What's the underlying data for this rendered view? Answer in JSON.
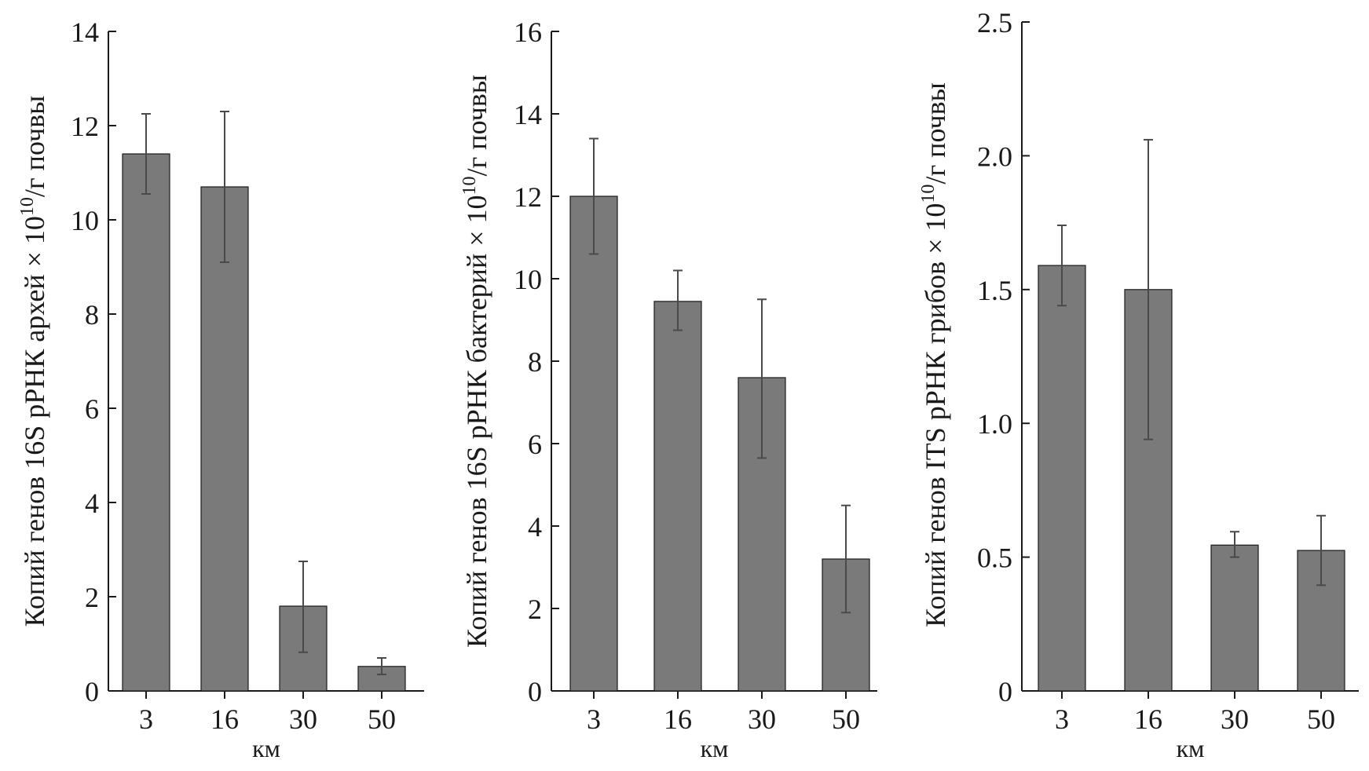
{
  "chart_data": [
    {
      "type": "bar",
      "categories": [
        "3",
        "16",
        "30",
        "50"
      ],
      "values": [
        11.4,
        10.7,
        1.8,
        0.52
      ],
      "error_low": [
        10.55,
        9.1,
        0.82,
        0.35
      ],
      "error_high": [
        12.25,
        12.3,
        2.75,
        0.7
      ],
      "yticks": [
        "0",
        "2",
        "4",
        "6",
        "8",
        "10",
        "12",
        "14"
      ],
      "ylim": [
        0,
        14
      ],
      "xlabel": "км",
      "ylabel": "Копий генов 16S рРНК архей × 10",
      "ylabel_exp": "10",
      "ylabel_tail": "/г почвы",
      "color": "#7a7a7a",
      "grid": false
    },
    {
      "type": "bar",
      "categories": [
        "3",
        "16",
        "30",
        "50"
      ],
      "values": [
        12.0,
        9.45,
        7.6,
        3.2
      ],
      "error_low": [
        10.6,
        8.75,
        5.65,
        1.9
      ],
      "error_high": [
        13.4,
        10.2,
        9.5,
        4.5
      ],
      "yticks": [
        "0",
        "2",
        "4",
        "6",
        "8",
        "10",
        "12",
        "14",
        "16"
      ],
      "ylim": [
        0,
        16
      ],
      "xlabel": "км",
      "ylabel": "Копий генов 16S рРНК бактерий × 10",
      "ylabel_exp": "10",
      "ylabel_tail": "/г почвы",
      "color": "#7a7a7a",
      "grid": false
    },
    {
      "type": "bar",
      "categories": [
        "3",
        "16",
        "30",
        "50"
      ],
      "values": [
        1.59,
        1.5,
        0.545,
        0.525
      ],
      "error_low": [
        1.44,
        0.94,
        0.5,
        0.395
      ],
      "error_high": [
        1.74,
        2.06,
        0.595,
        0.655
      ],
      "yticks": [
        "0",
        "0.5",
        "1.0",
        "1.5",
        "2.0",
        "2.5"
      ],
      "ylim": [
        0,
        2.5
      ],
      "xlabel": "км",
      "ylabel": "Копий генов ITS рРНК грибов × 10",
      "ylabel_exp": "10",
      "ylabel_tail": "/г почвы",
      "color": "#7a7a7a",
      "grid": false
    }
  ]
}
